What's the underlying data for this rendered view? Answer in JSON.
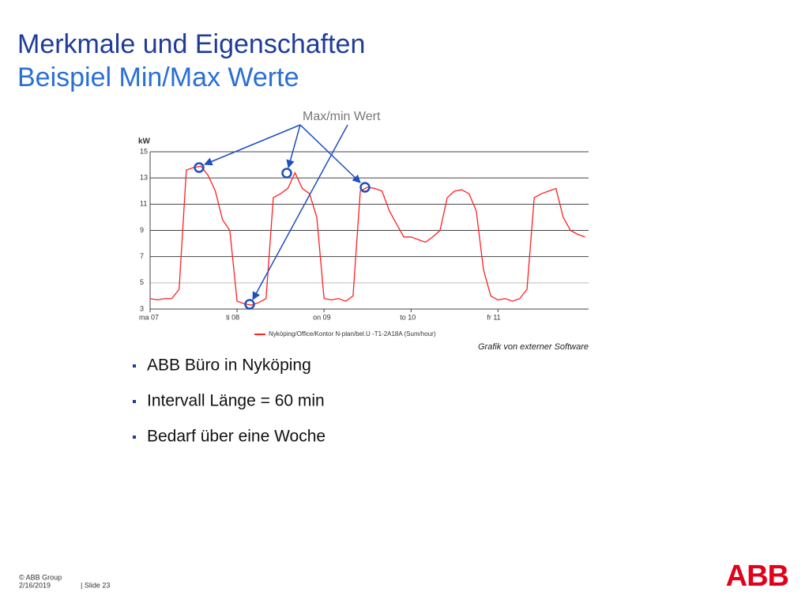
{
  "slide": {
    "title": "Merkmale und Eigenschaften",
    "subtitle": "Beispiel Min/Max Werte",
    "bullets": [
      "ABB Büro in Nyköping",
      "Intervall Länge = 60 min",
      "Bedarf über eine Woche"
    ],
    "footer": {
      "copyright": "© ABB Group",
      "date": "2/16/2019",
      "slide": "| Slide 23"
    },
    "logo": "ABB",
    "caption": "Grafik von externer Software"
  },
  "chart_data": {
    "type": "line",
    "ylabel": "kW",
    "annotation": "Max/min Wert",
    "x": [
      0,
      2,
      4,
      6,
      8,
      10,
      12,
      14,
      16,
      18,
      20,
      22,
      24,
      26,
      28,
      30,
      32,
      34,
      36,
      38,
      40,
      42,
      44,
      46,
      48,
      50,
      52,
      54,
      56,
      58,
      60,
      62,
      64,
      66,
      68,
      70,
      72,
      74,
      76,
      78,
      80,
      82,
      84,
      86,
      88,
      90,
      92,
      94,
      96,
      98,
      100,
      102,
      104,
      106,
      108,
      110,
      112,
      114,
      116,
      118,
      120
    ],
    "series": [
      {
        "name": "Nyköping/Office/Kontor N-plan/bel.U -T1-2A18A (Sum/hour)",
        "color": "#ff2020",
        "values": [
          3.8,
          3.7,
          3.8,
          3.8,
          4.5,
          13.6,
          13.8,
          13.9,
          13.2,
          12.0,
          9.8,
          9.0,
          3.6,
          3.4,
          3.3,
          3.5,
          3.8,
          11.5,
          11.8,
          12.2,
          13.4,
          12.2,
          11.8,
          10.0,
          3.8,
          3.7,
          3.8,
          3.6,
          4.0,
          12.0,
          12.3,
          12.2,
          12.0,
          10.5,
          9.5,
          8.5,
          8.5,
          8.3,
          8.1,
          8.5,
          9.0,
          11.5,
          12.0,
          12.1,
          11.8,
          10.5,
          6.0,
          4.0,
          3.7,
          3.8,
          3.6,
          3.8,
          4.5,
          11.5,
          11.8,
          12.0,
          12.2,
          10.0,
          9.0,
          8.7,
          8.5
        ]
      }
    ],
    "xlim": [
      0,
      121
    ],
    "xticks": [
      {
        "value": 0,
        "label": "ma 07"
      },
      {
        "value": 24,
        "label": "ti 08"
      },
      {
        "value": 48,
        "label": "on 09"
      },
      {
        "value": 72,
        "label": "to 10"
      },
      {
        "value": 96,
        "label": "fr 11"
      }
    ],
    "ylim": [
      3,
      15
    ],
    "yticks": [
      3,
      5,
      7,
      9,
      11,
      13,
      15
    ],
    "grid": true
  }
}
